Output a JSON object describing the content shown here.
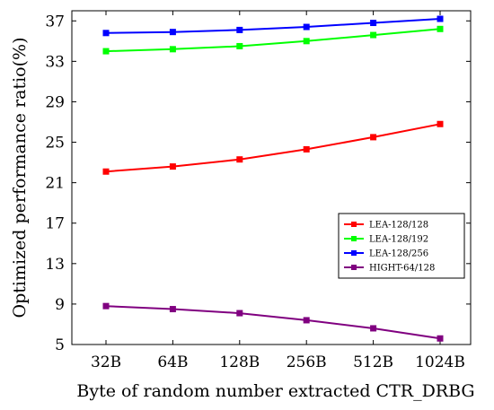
{
  "chart_data": {
    "type": "line",
    "title": "",
    "xlabel": "Byte of random number extracted CTR_DRBG",
    "ylabel": "Optimized performance ratio(%)",
    "categories": [
      "32B",
      "64B",
      "128B",
      "256B",
      "512B",
      "1024B"
    ],
    "ylim": [
      5,
      38
    ],
    "yticks": [
      5,
      9,
      13,
      17,
      21,
      25,
      29,
      33,
      37
    ],
    "grid": false,
    "legend_position": "right",
    "series": [
      {
        "name": "LEA-128/128",
        "color": "#ff0000",
        "values": [
          22.1,
          22.6,
          23.3,
          24.3,
          25.5,
          26.8
        ]
      },
      {
        "name": "LEA-128/192",
        "color": "#00ff00",
        "values": [
          34.0,
          34.2,
          34.5,
          35.0,
          35.6,
          36.2
        ]
      },
      {
        "name": "LEA-128/256",
        "color": "#0000ff",
        "values": [
          35.8,
          35.9,
          36.1,
          36.4,
          36.8,
          37.2
        ]
      },
      {
        "name": "HIGHT-64/128",
        "color": "#800080",
        "values": [
          8.8,
          8.5,
          8.1,
          7.4,
          6.6,
          5.6
        ]
      }
    ]
  }
}
